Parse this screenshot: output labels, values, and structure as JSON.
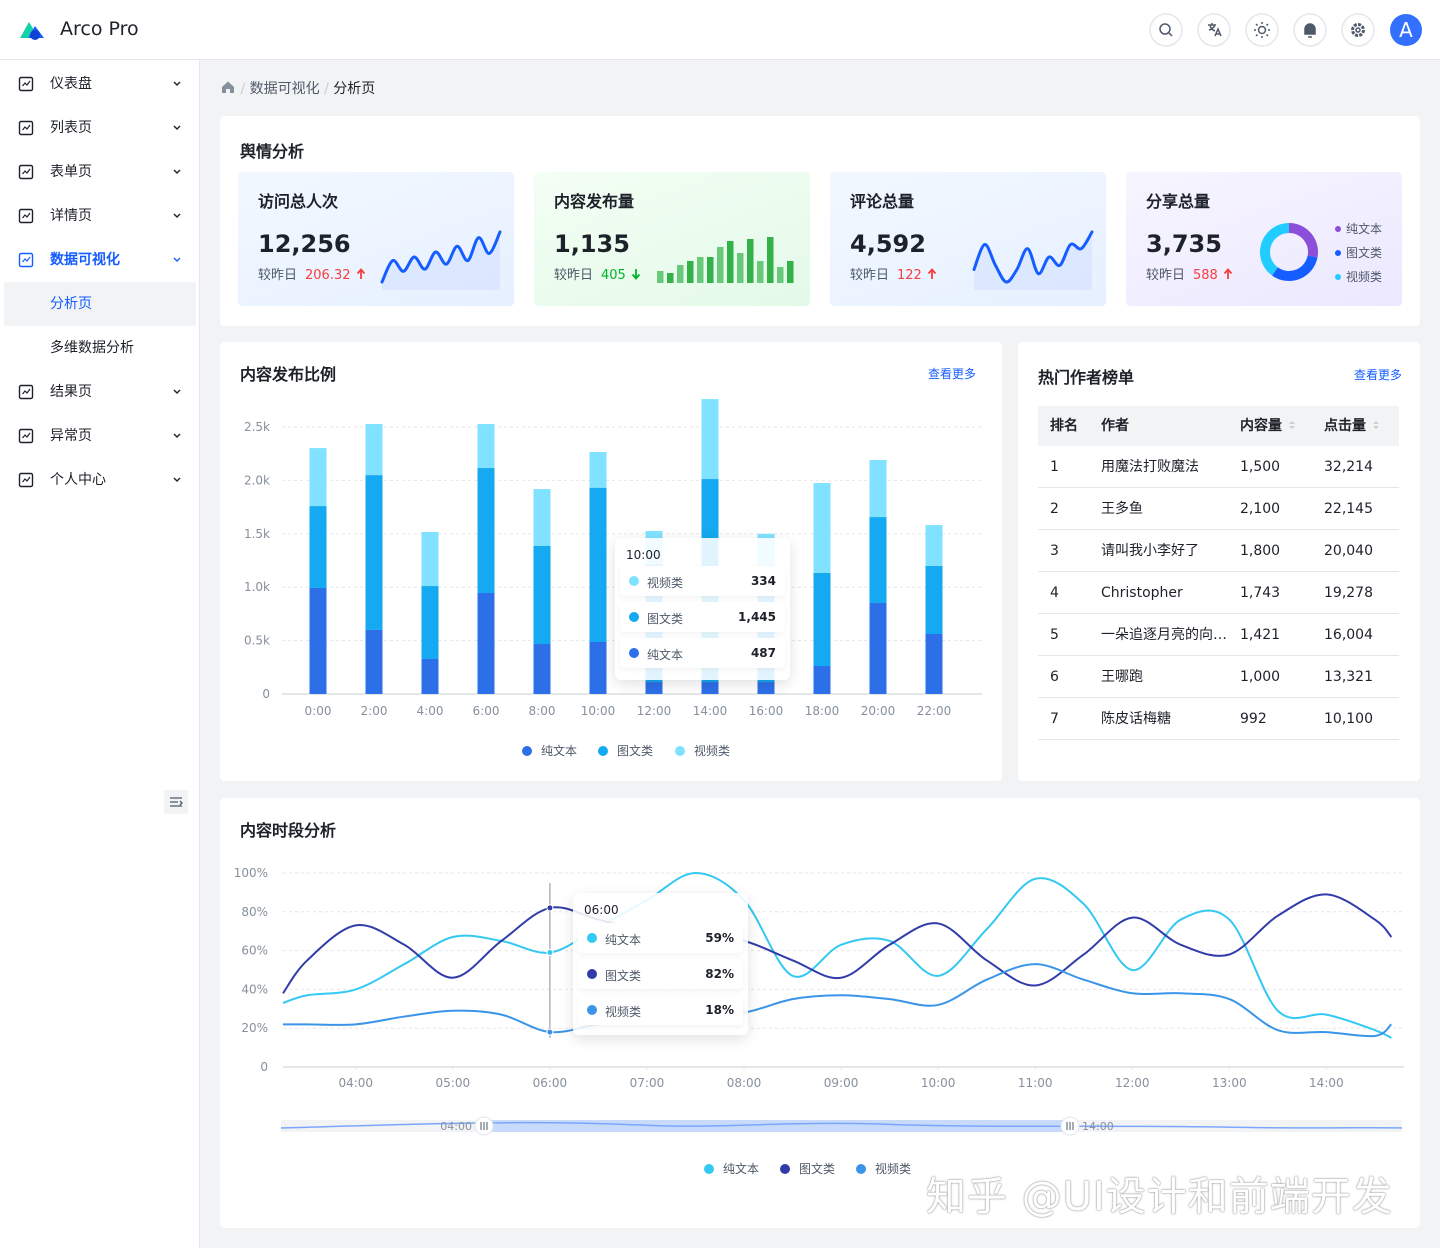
{
  "header": {
    "brand": "Arco Pro",
    "avatar": "A"
  },
  "menu": [
    {
      "label": "仪表盘"
    },
    {
      "label": "列表页"
    },
    {
      "label": "表单页"
    },
    {
      "label": "详情页"
    },
    {
      "label": "数据可视化",
      "open": true,
      "children": [
        "分析页",
        "多维数据分析"
      ],
      "selected": 0
    },
    {
      "label": "结果页"
    },
    {
      "label": "异常页"
    },
    {
      "label": "个人中心"
    }
  ],
  "breadcrumb": [
    "数据可视化",
    "分析页"
  ],
  "overview": {
    "title": "舆情分析",
    "cards": [
      {
        "title": "访问总人次",
        "value": "12,256",
        "compare": "较昨日",
        "change": "206.32",
        "trend": "up",
        "chart": {
          "type": "line",
          "color": "#165dff",
          "values": [
            20,
            50,
            35,
            55,
            38,
            62,
            45,
            70,
            50,
            82,
            60,
            90
          ]
        }
      },
      {
        "title": "内容发布量",
        "value": "1,135",
        "compare": "较昨日",
        "change": "405",
        "trend": "down",
        "chart": {
          "type": "bar",
          "color": "#33b24a",
          "values": [
            12,
            10,
            18,
            22,
            26,
            26,
            36,
            42,
            30,
            44,
            22,
            46,
            16,
            22
          ]
        }
      },
      {
        "title": "评论总量",
        "value": "4,592",
        "compare": "较昨日",
        "change": "122",
        "trend": "up",
        "chart": {
          "type": "line",
          "color": "#165dff",
          "values": [
            40,
            70,
            45,
            25,
            40,
            65,
            35,
            55,
            45,
            70,
            65,
            85
          ]
        }
      },
      {
        "title": "分享总量",
        "value": "3,735",
        "compare": "较昨日",
        "change": "588",
        "trend": "up",
        "chart": {
          "type": "pie",
          "categories": [
            "纯文本",
            "图文类",
            "视频类"
          ],
          "values": [
            28,
            32,
            40
          ],
          "colors": [
            "#8d4eda",
            "#165dff",
            "#21ccff"
          ]
        }
      }
    ]
  },
  "chart_data": [
    {
      "type": "bar",
      "stacked": true,
      "title": "内容发布比例",
      "link": "查看更多",
      "categories": [
        "0:00",
        "2:00",
        "4:00",
        "6:00",
        "8:00",
        "10:00",
        "12:00",
        "14:00",
        "16:00",
        "18:00",
        "20:00",
        "22:00"
      ],
      "series": [
        {
          "name": "纯文本",
          "color": "#2d6fe8",
          "values": [
            993,
            600,
            328,
            946,
            468,
            487,
            112,
            112,
            112,
            262,
            852,
            562
          ]
        },
        {
          "name": "图文类",
          "color": "#14a9f0",
          "values": [
            767,
            1450,
            683,
            1170,
            918,
            1445,
            1100,
            1901,
            1000,
            871,
            805,
            637
          ]
        },
        {
          "name": "视频类",
          "color": "#81e2ff",
          "values": [
            543,
            478,
            506,
            412,
            533,
            334,
            314,
            749,
            388,
            843,
            534,
            383
          ]
        }
      ],
      "ylim": [
        0,
        2800
      ],
      "yticks": [
        0,
        {
          "value": 500,
          "label": "0.5k"
        },
        {
          "value": 1000,
          "label": "1.0k"
        },
        {
          "value": 1500,
          "label": "1.5k"
        },
        {
          "value": 2000,
          "label": "2.0k"
        },
        {
          "value": 2500,
          "label": "2.5k"
        }
      ],
      "grid": true,
      "legend": "bottom",
      "tooltip": {
        "index": 5,
        "title": "10:00",
        "items": [
          {
            "name": "视频类",
            "color": "#81e2ff",
            "value": "334"
          },
          {
            "name": "图文类",
            "color": "#14a9f0",
            "value": "1,445"
          },
          {
            "name": "纯文本",
            "color": "#2d6fe8",
            "value": "487"
          }
        ]
      }
    },
    {
      "type": "line",
      "smooth": true,
      "title": "内容时段分析",
      "x": [
        3.25,
        3.5,
        4,
        4.5,
        5,
        5.5,
        6,
        6.5,
        7,
        7.5,
        8,
        8.5,
        9,
        9.5,
        10,
        10.5,
        11,
        11.5,
        12,
        12.5,
        13,
        13.5,
        14,
        14.5,
        14.67
      ],
      "series": [
        {
          "name": "纯文本",
          "color": "#33c9f2",
          "values": [
            33,
            37,
            40,
            53,
            67,
            65,
            59,
            72,
            86,
            100,
            86,
            47,
            63,
            65,
            47,
            71,
            97,
            84,
            50,
            76,
            76,
            29,
            27,
            19,
            15
          ]
        },
        {
          "name": "图文类",
          "color": "#313ca9",
          "values": [
            38,
            55,
            73,
            63,
            46,
            65,
            82,
            76,
            70,
            68,
            65,
            55,
            46,
            63,
            74,
            55,
            42,
            58,
            77,
            63,
            58,
            78,
            89,
            76,
            67
          ]
        },
        {
          "name": "视频类",
          "color": "#3a95e8",
          "values": [
            22,
            22,
            22,
            26,
            29,
            27,
            18,
            22,
            24,
            27,
            28,
            35,
            37,
            35,
            32,
            45,
            53,
            45,
            38,
            38,
            35,
            19,
            18,
            16,
            22
          ]
        }
      ],
      "xlim": [
        3.25,
        14.8
      ],
      "xticks": [
        {
          "value": 4,
          "label": "04:00"
        },
        {
          "value": 5,
          "label": "05:00"
        },
        {
          "value": 6,
          "label": "06:00"
        },
        {
          "value": 7,
          "label": "07:00"
        },
        {
          "value": 8,
          "label": "08:00"
        },
        {
          "value": 9,
          "label": "09:00"
        },
        {
          "value": 10,
          "label": "10:00"
        },
        {
          "value": 11,
          "label": "11:00"
        },
        {
          "value": 12,
          "label": "12:00"
        },
        {
          "value": 13,
          "label": "13:00"
        },
        {
          "value": 14,
          "label": "14:00"
        }
      ],
      "ylim": [
        0,
        100
      ],
      "yticks": [
        0,
        {
          "value": 20,
          "label": "20%"
        },
        {
          "value": 40,
          "label": "40%"
        },
        {
          "value": 60,
          "label": "60%"
        },
        {
          "value": 80,
          "label": "80%"
        },
        {
          "value": 100,
          "label": "100%"
        }
      ],
      "grid": true,
      "legend": "bottom",
      "zoom": {
        "start": "04:00",
        "end": "14:00"
      },
      "tooltip": {
        "index": 6,
        "title": "06:00",
        "items": [
          {
            "name": "纯文本",
            "color": "#33c9f2",
            "value": "59%"
          },
          {
            "name": "图文类",
            "color": "#313ca9",
            "value": "82%"
          },
          {
            "name": "视频类",
            "color": "#3a95e8",
            "value": "18%"
          }
        ]
      }
    }
  ],
  "authors": {
    "title": "热门作者榜单",
    "link": "查看更多",
    "columns": [
      {
        "title": "排名"
      },
      {
        "title": "作者"
      },
      {
        "title": "内容量",
        "sortable": true
      },
      {
        "title": "点击量",
        "sortable": true
      }
    ],
    "rows": [
      [
        "1",
        "用魔法打败魔法",
        "1,500",
        "32,214"
      ],
      [
        "2",
        "王多鱼",
        "2,100",
        "22,145"
      ],
      [
        "3",
        "请叫我小李好了",
        "1,800",
        "20,040"
      ],
      [
        "4",
        "Christopher",
        "1,743",
        "19,278"
      ],
      [
        "5",
        "一朵追逐月亮的向…",
        "1,421",
        "16,004"
      ],
      [
        "6",
        "王哪跑",
        "1,000",
        "13,321"
      ],
      [
        "7",
        "陈皮话梅糖",
        "992",
        "10,100"
      ]
    ]
  },
  "watermark": "知乎 @UI设计和前端开发"
}
